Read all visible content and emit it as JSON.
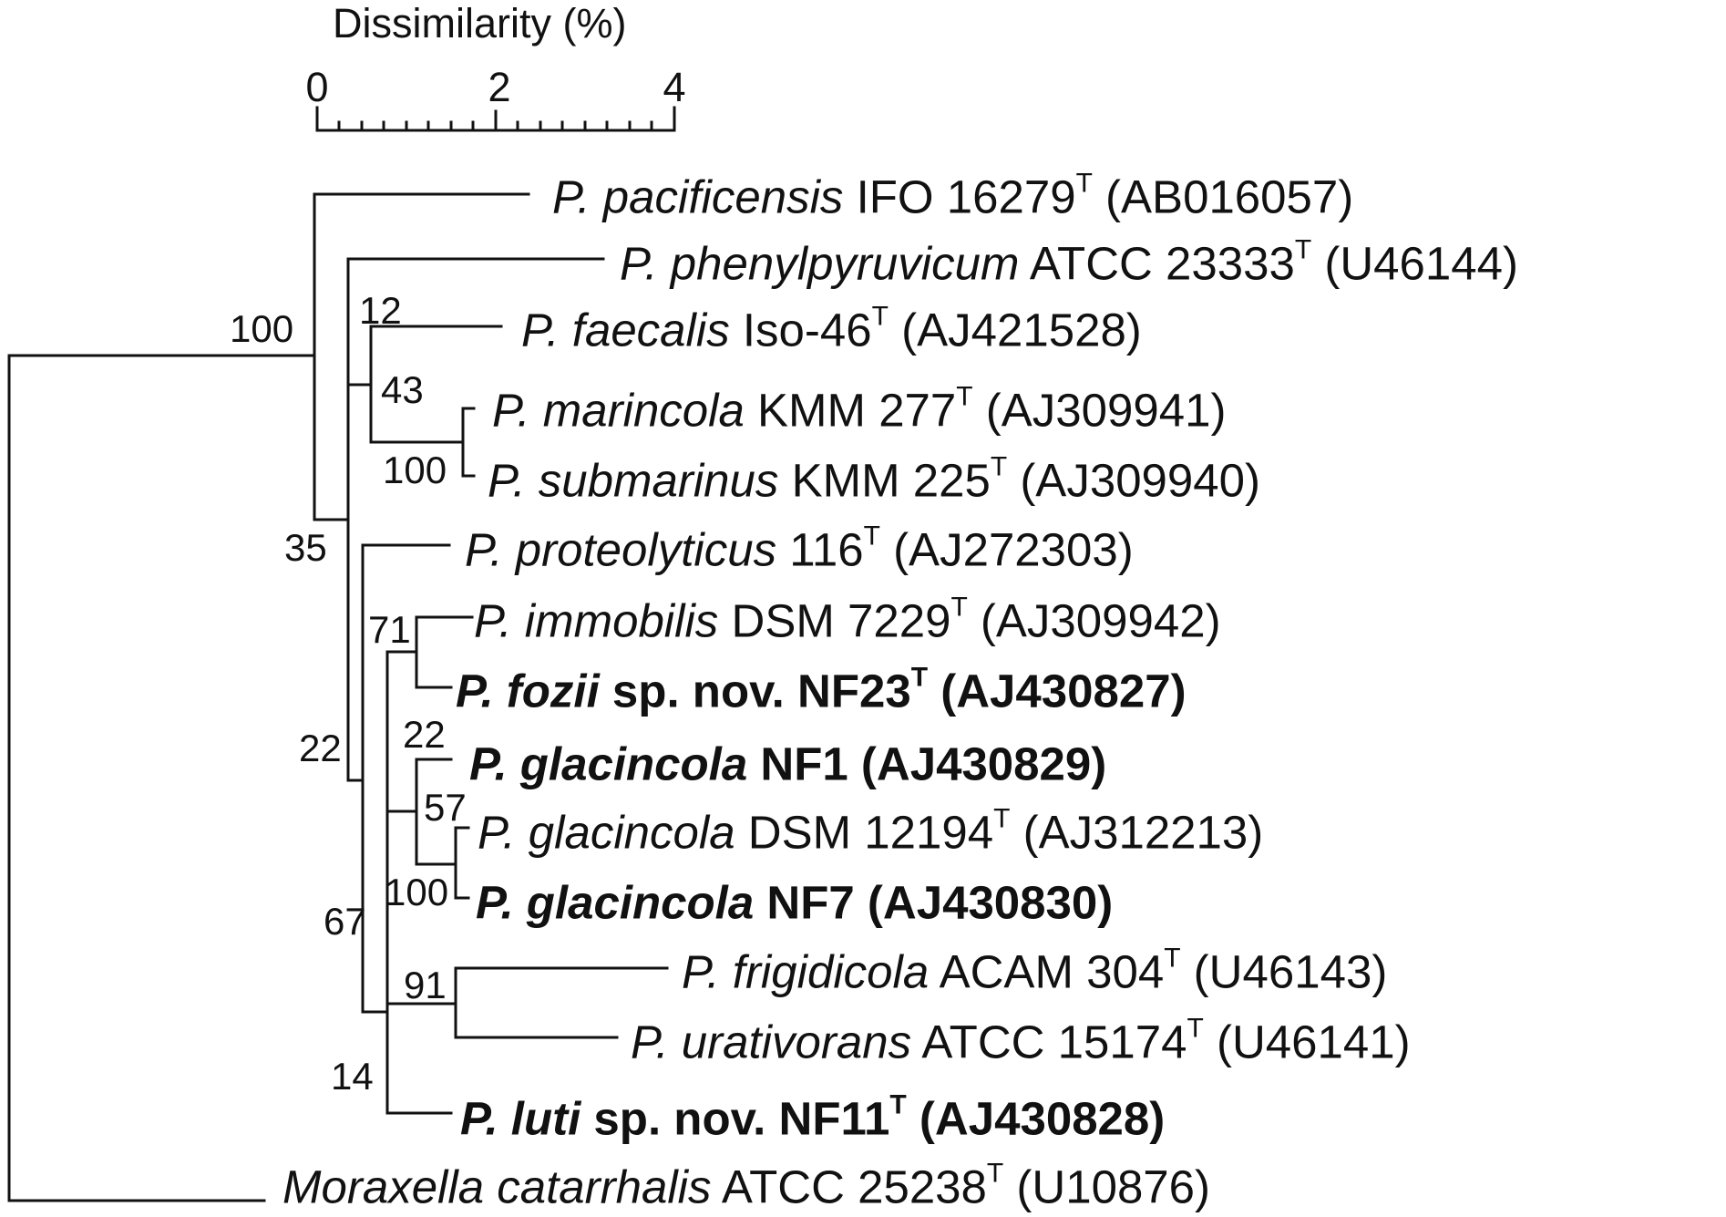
{
  "scale": {
    "title": "Dissimilarity (%)",
    "ticks": [
      "0",
      "2",
      "4"
    ]
  },
  "leaves": [
    {
      "genus": "P. pacificensis",
      "strain": " IFO 16279",
      "sup": "T",
      "acc": " (AB016057)",
      "bold": false
    },
    {
      "genus": "P. phenylpyruvicum",
      "strain": " ATCC 23333",
      "sup": "T",
      "acc": " (U46144)",
      "bold": false
    },
    {
      "genus": "P. faecalis",
      "strain": " Iso-46",
      "sup": "T",
      "acc": " (AJ421528)",
      "bold": false
    },
    {
      "genus": "P. marincola",
      "strain": " KMM 277",
      "sup": "T",
      "acc": " (AJ309941)",
      "bold": false
    },
    {
      "genus": "P. submarinus",
      "strain": " KMM 225",
      "sup": "T",
      "acc": " (AJ309940)",
      "bold": false
    },
    {
      "genus": "P. proteolyticus",
      "strain": " 116",
      "sup": "T",
      "acc": " (AJ272303)",
      "bold": false
    },
    {
      "genus": "P. immobilis",
      "strain": " DSM 7229",
      "sup": "T",
      "acc": " (AJ309942)",
      "bold": false
    },
    {
      "genus": "P. fozii",
      "strain": " sp. nov. NF23",
      "sup": "T",
      "acc": " (AJ430827)",
      "bold": true
    },
    {
      "genus": "P. glacincola",
      "strain": " NF1",
      "sup": "",
      "acc": " (AJ430829)",
      "bold": true
    },
    {
      "genus": "P. glacincola",
      "strain": " DSM 12194",
      "sup": "T",
      "acc": " (AJ312213)",
      "bold": false
    },
    {
      "genus": "P. glacincola",
      "strain": " NF7",
      "sup": "",
      "acc": " (AJ430830)",
      "bold": true
    },
    {
      "genus": "P. frigidicola",
      "strain": " ACAM 304",
      "sup": "T",
      "acc": " (U46143)",
      "bold": false
    },
    {
      "genus": "P. urativorans",
      "strain": " ATCC 15174",
      "sup": "T",
      "acc": " (U46141)",
      "bold": false
    },
    {
      "genus": "P. luti",
      "strain": " sp. nov. NF11",
      "sup": "T",
      "acc": " (AJ430828)",
      "bold": true
    },
    {
      "genus": "Moraxella catarrhalis",
      "strain": " ATCC 25238",
      "sup": "T",
      "acc": " (U10876)",
      "bold": false
    }
  ],
  "bootstrap": [
    "100",
    "12",
    "43",
    "100",
    "35",
    "71",
    "22",
    "22",
    "57",
    "100",
    "67",
    "91",
    "14"
  ]
}
